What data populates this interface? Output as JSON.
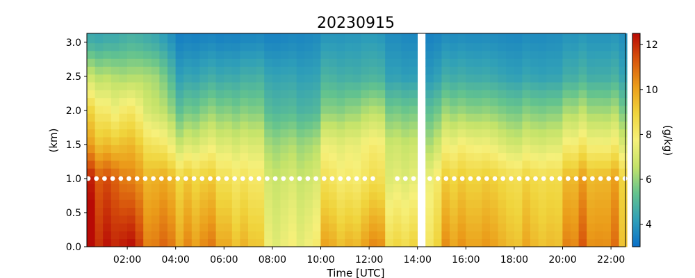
{
  "chart_data": {
    "type": "heatmap",
    "title": "20230915",
    "xlabel": "Time [UTC]",
    "ylabel": "(km)",
    "colorbar_label": "(g/kg)",
    "x_range_hours": [
      0.33,
      22.6
    ],
    "y_range_km": [
      0.0,
      3.13
    ],
    "color_range": [
      3.0,
      12.5
    ],
    "colormap": [
      "#0a6fc8",
      "#2f9fb8",
      "#64c38e",
      "#c4e36a",
      "#f6f07a",
      "#f0d43c",
      "#eb9d1a",
      "#d8550c",
      "#b80a05"
    ],
    "x_ticks": [
      {
        "value": 2,
        "label": "02:00"
      },
      {
        "value": 4,
        "label": "04:00"
      },
      {
        "value": 6,
        "label": "06:00"
      },
      {
        "value": 8,
        "label": "08:00"
      },
      {
        "value": 10,
        "label": "10:00"
      },
      {
        "value": 12,
        "label": "12:00"
      },
      {
        "value": 14,
        "label": "14:00"
      },
      {
        "value": 16,
        "label": "16:00"
      },
      {
        "value": 18,
        "label": "18:00"
      },
      {
        "value": 20,
        "label": "20:00"
      },
      {
        "value": 22,
        "label": "22:00"
      }
    ],
    "y_ticks": [
      {
        "value": 0.0,
        "label": "0.0"
      },
      {
        "value": 0.5,
        "label": "0.5"
      },
      {
        "value": 1.0,
        "label": "1.0"
      },
      {
        "value": 1.5,
        "label": "1.5"
      },
      {
        "value": 2.0,
        "label": "2.0"
      },
      {
        "value": 2.5,
        "label": "2.5"
      },
      {
        "value": 3.0,
        "label": "3.0"
      }
    ],
    "colorbar_ticks": [
      {
        "value": 4,
        "label": "4"
      },
      {
        "value": 6,
        "label": "6"
      },
      {
        "value": 8,
        "label": "8"
      },
      {
        "value": 10,
        "label": "10"
      },
      {
        "value": 12,
        "label": "12"
      }
    ],
    "data_gap_hours": [
      14.0,
      14.42
    ],
    "marker_height_km": 1.0,
    "marker_gap_hours": [
      12.35,
      12.9
    ],
    "mixing_ratio_profile_keyframes": [
      {
        "t": 0.3,
        "surface": 12.0,
        "k1": 11.5,
        "k15": 9.5,
        "k2": 8.6,
        "k25": 6.5,
        "k3": 4.5
      },
      {
        "t": 1.5,
        "surface": 11.6,
        "k1": 10.8,
        "k15": 9.0,
        "k2": 7.4,
        "k25": 6.2,
        "k3": 4.6
      },
      {
        "t": 2.0,
        "surface": 11.8,
        "k1": 10.0,
        "k15": 9.2,
        "k2": 8.0,
        "k25": 6.0,
        "k3": 4.8
      },
      {
        "t": 3.0,
        "surface": 11.3,
        "k1": 10.2,
        "k15": 8.8,
        "k2": 7.2,
        "k25": 6.6,
        "k3": 4.8
      },
      {
        "t": 4.2,
        "surface": 10.8,
        "k1": 9.5,
        "k15": 7.2,
        "k2": 5.6,
        "k25": 4.4,
        "k3": 3.6
      },
      {
        "t": 6.0,
        "surface": 9.2,
        "k1": 8.0,
        "k15": 6.8,
        "k2": 5.5,
        "k25": 4.3,
        "k3": 3.5
      },
      {
        "t": 8.0,
        "surface": 8.2,
        "k1": 7.4,
        "k15": 6.6,
        "k2": 5.4,
        "k25": 4.6,
        "k3": 3.7
      },
      {
        "t": 10.0,
        "surface": 8.8,
        "k1": 7.6,
        "k15": 6.8,
        "k2": 5.3,
        "k25": 4.5,
        "k3": 3.9
      },
      {
        "t": 11.8,
        "surface": 9.4,
        "k1": 7.8,
        "k15": 7.4,
        "k2": 6.0,
        "k25": 4.6,
        "k3": 4.1
      },
      {
        "t": 13.9,
        "surface": 9.0,
        "k1": 7.4,
        "k15": 6.8,
        "k2": 5.6,
        "k25": 4.2,
        "k3": 3.7
      },
      {
        "t": 14.5,
        "surface": 9.2,
        "k1": 8.2,
        "k15": 6.8,
        "k2": 5.6,
        "k25": 4.3,
        "k3": 3.7
      },
      {
        "t": 16.0,
        "surface": 9.8,
        "k1": 8.8,
        "k15": 7.6,
        "k2": 5.8,
        "k25": 4.5,
        "k3": 3.8
      },
      {
        "t": 18.0,
        "surface": 10.0,
        "k1": 9.0,
        "k15": 7.2,
        "k2": 5.8,
        "k25": 4.4,
        "k3": 3.8
      },
      {
        "t": 20.0,
        "surface": 10.4,
        "k1": 9.4,
        "k15": 7.8,
        "k2": 6.2,
        "k25": 4.6,
        "k3": 4.0
      },
      {
        "t": 22.6,
        "surface": 10.2,
        "k1": 9.6,
        "k15": 7.6,
        "k2": 6.0,
        "k25": 4.6,
        "k3": 4.0
      }
    ]
  }
}
